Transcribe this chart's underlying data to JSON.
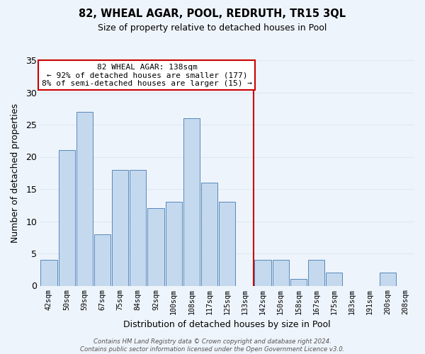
{
  "title": "82, WHEAL AGAR, POOL, REDRUTH, TR15 3QL",
  "subtitle": "Size of property relative to detached houses in Pool",
  "xlabel": "Distribution of detached houses by size in Pool",
  "ylabel": "Number of detached properties",
  "footnote1": "Contains HM Land Registry data © Crown copyright and database right 2024.",
  "footnote2": "Contains public sector information licensed under the Open Government Licence v3.0.",
  "bar_labels": [
    "42sqm",
    "50sqm",
    "59sqm",
    "67sqm",
    "75sqm",
    "84sqm",
    "92sqm",
    "100sqm",
    "108sqm",
    "117sqm",
    "125sqm",
    "133sqm",
    "142sqm",
    "150sqm",
    "158sqm",
    "167sqm",
    "175sqm",
    "183sqm",
    "191sqm",
    "200sqm",
    "208sqm"
  ],
  "bar_values": [
    4,
    21,
    27,
    8,
    18,
    18,
    12,
    13,
    26,
    16,
    13,
    0,
    4,
    4,
    1,
    4,
    2,
    0,
    0,
    2,
    0
  ],
  "bar_color": "#c5d9ee",
  "bar_edge_color": "#5588bb",
  "grid_color": "#dde8f4",
  "background_color": "#eef4fb",
  "annotation_text": "82 WHEAL AGAR: 138sqm\n← 92% of detached houses are smaller (177)\n8% of semi-detached houses are larger (15) →",
  "vline_color": "#cc0000",
  "annotation_box_edge_color": "#cc0000",
  "ylim": [
    0,
    35
  ],
  "yticks": [
    0,
    5,
    10,
    15,
    20,
    25,
    30,
    35
  ]
}
